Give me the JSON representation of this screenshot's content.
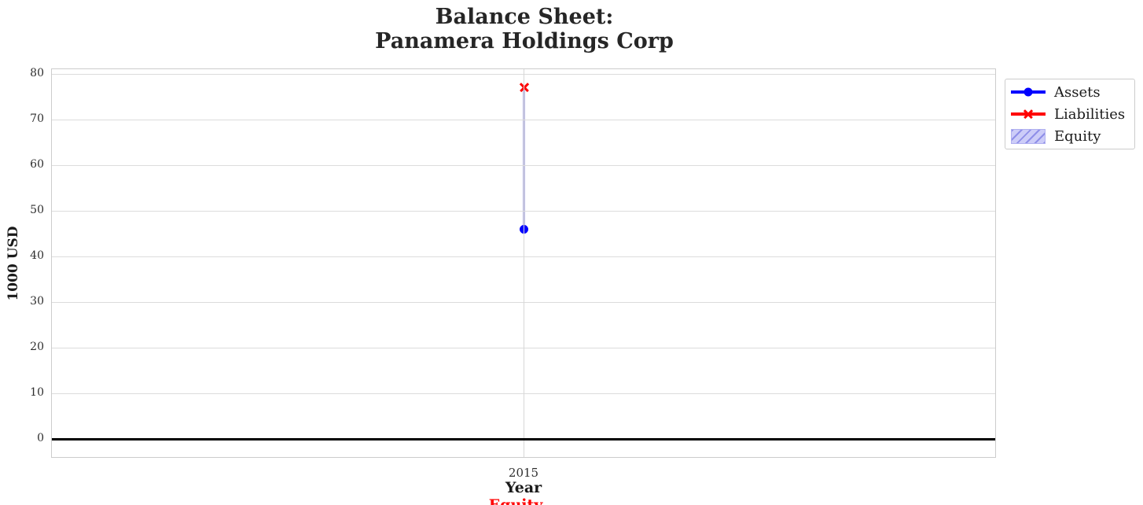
{
  "title": {
    "line1": "Balance Sheet:",
    "line2": "Panamera Holdings Corp"
  },
  "chart_data": {
    "type": "line",
    "title": "Balance Sheet: Panamera Holdings Corp",
    "xlabel": "Year",
    "ylabel": "1000 USD",
    "x": [
      2015
    ],
    "xtick_labels": [
      "2015"
    ],
    "series": [
      {
        "name": "Assets",
        "values": [
          46
        ],
        "color": "#0000ff",
        "marker": "circle"
      },
      {
        "name": "Liabilities",
        "values": [
          77
        ],
        "color": "#ff0000",
        "marker": "x"
      },
      {
        "name": "Equity",
        "values": [
          -31
        ],
        "style": "hatched-area",
        "facecolor": "#ccccf8",
        "hatchcolor": "#8f8fe8"
      }
    ],
    "ylim": [
      -4.5,
      81
    ],
    "yticks": [
      0,
      10,
      20,
      30,
      40,
      50,
      60,
      70,
      80
    ],
    "grid": true,
    "zero_line": {
      "value": 0,
      "color": "#000000"
    },
    "legend": {
      "position": "outside-upper-right",
      "entries": [
        "Assets",
        "Liabilities",
        "Equity"
      ]
    },
    "annotation": {
      "text": "Equity",
      "color": "#ff0000",
      "note": "clipped at bottom edge of image"
    }
  },
  "colors": {
    "assets": "#0000ff",
    "liabilities": "#ff0000",
    "equity_face": "#ccccf8",
    "equity_hatch": "#8f8fe8",
    "equity_edge": "#b4b4e6",
    "grid": "#dcdcdc",
    "spine": "#cccccc"
  }
}
